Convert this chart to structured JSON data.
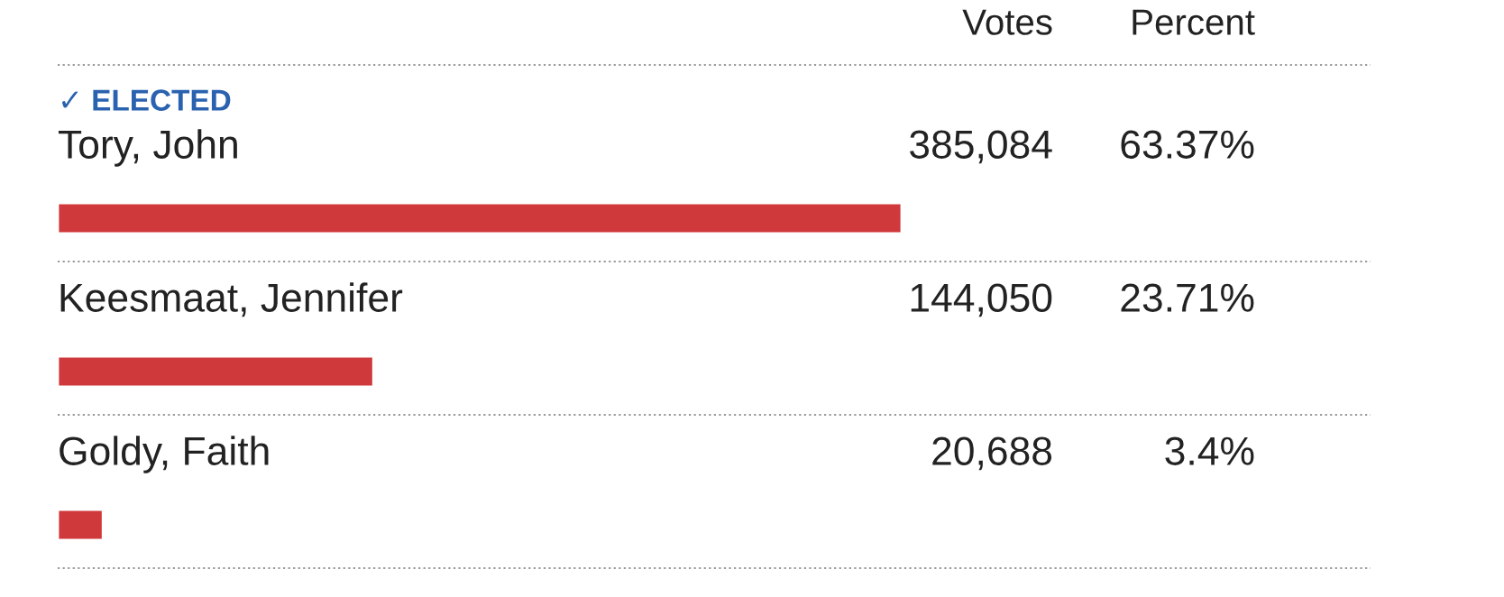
{
  "chart_data": {
    "type": "bar",
    "orientation": "horizontal",
    "categories": [
      "Tory, John",
      "Keesmaat, Jennifer",
      "Goldy, Faith"
    ],
    "values": [
      63.37,
      23.71,
      3.4
    ],
    "value_labels": [
      "63.37%",
      "23.71%",
      "3.4%"
    ],
    "color": "#d0393b",
    "tick_labels": false,
    "annotations": [
      "Votes",
      "Percent",
      "✓ ELECTED",
      "385,084",
      "144,050",
      "20,688"
    ]
  }
}
